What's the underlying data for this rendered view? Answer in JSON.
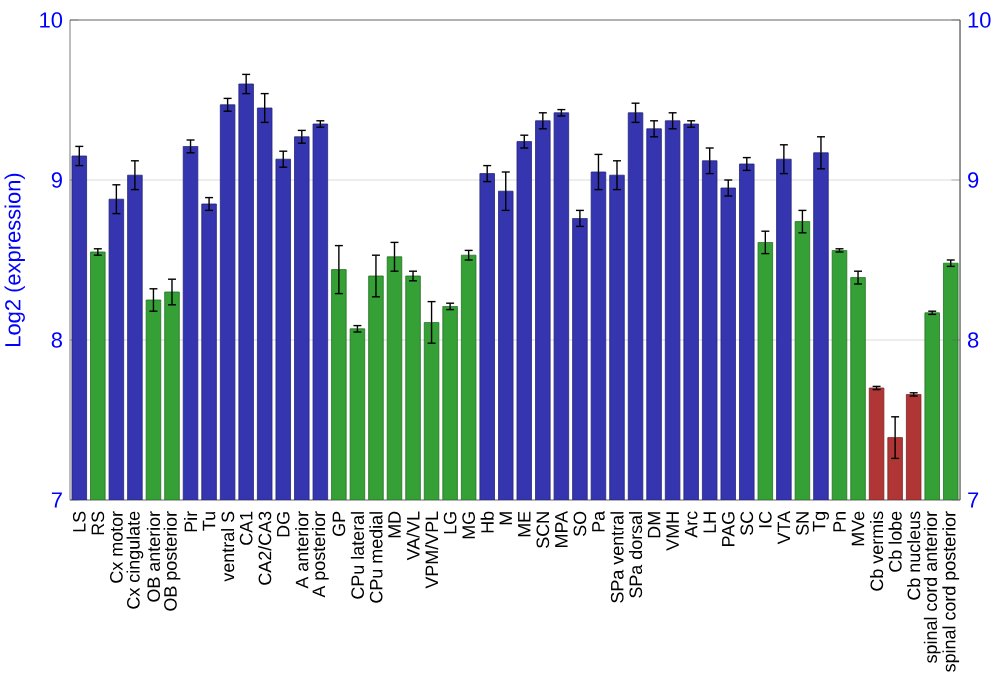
{
  "chart_data": {
    "type": "bar",
    "ylabel": "Log2 (expression)",
    "categories": [
      "LS",
      "RS",
      "Cx motor",
      "Cx cingulate",
      "OB anterior",
      "OB posterior",
      "Pir",
      "Tu",
      "ventral S",
      "CA1",
      "CA2/CA3",
      "DG",
      "A anterior",
      "A posterior",
      "GP",
      "CPu lateral",
      "CPu medial",
      "MD",
      "VA/VL",
      "VPM/VPL",
      "LG",
      "MG",
      "Hb",
      "M",
      "ME",
      "SCN",
      "MPA",
      "SO",
      "Pa",
      "SPa ventral",
      "SPa dorsal",
      "DM",
      "VMH",
      "Arc",
      "LH",
      "PAG",
      "SC",
      "IC",
      "VTA",
      "SN",
      "Tg",
      "Pn",
      "MVe",
      "Cb vermis",
      "Cb lobe",
      "Cb nucleus",
      "spinal cord anterior",
      "spinal cord posterior"
    ],
    "values": [
      9.15,
      8.55,
      8.88,
      9.03,
      8.25,
      8.3,
      9.21,
      8.85,
      9.47,
      9.6,
      9.45,
      9.13,
      9.27,
      9.35,
      8.44,
      8.07,
      8.4,
      8.52,
      8.4,
      8.11,
      8.21,
      8.53,
      9.04,
      8.93,
      9.24,
      9.37,
      9.42,
      8.76,
      9.05,
      9.03,
      9.42,
      9.32,
      9.37,
      9.35,
      9.12,
      8.95,
      9.1,
      8.61,
      9.13,
      8.74,
      9.17,
      8.56,
      8.39,
      7.7,
      7.39,
      7.66,
      8.17,
      8.48
    ],
    "errors": [
      0.06,
      0.02,
      0.09,
      0.09,
      0.07,
      0.08,
      0.04,
      0.04,
      0.04,
      0.06,
      0.09,
      0.05,
      0.04,
      0.02,
      0.15,
      0.02,
      0.13,
      0.09,
      0.03,
      0.13,
      0.02,
      0.03,
      0.05,
      0.12,
      0.04,
      0.05,
      0.02,
      0.05,
      0.11,
      0.09,
      0.06,
      0.05,
      0.05,
      0.02,
      0.08,
      0.05,
      0.04,
      0.07,
      0.09,
      0.07,
      0.1,
      0.01,
      0.04,
      0.01,
      0.13,
      0.01,
      0.01,
      0.02
    ],
    "colors": [
      "#3535b0",
      "#35a035",
      "#3535b0",
      "#3535b0",
      "#35a035",
      "#35a035",
      "#3535b0",
      "#3535b0",
      "#3535b0",
      "#3535b0",
      "#3535b0",
      "#3535b0",
      "#3535b0",
      "#3535b0",
      "#35a035",
      "#35a035",
      "#35a035",
      "#35a035",
      "#35a035",
      "#35a035",
      "#35a035",
      "#35a035",
      "#3535b0",
      "#3535b0",
      "#3535b0",
      "#3535b0",
      "#3535b0",
      "#3535b0",
      "#3535b0",
      "#3535b0",
      "#3535b0",
      "#3535b0",
      "#3535b0",
      "#3535b0",
      "#3535b0",
      "#3535b0",
      "#3535b0",
      "#35a035",
      "#3535b0",
      "#35a035",
      "#3535b0",
      "#35a035",
      "#35a035",
      "#b03535",
      "#b03535",
      "#b03535",
      "#35a035",
      "#35a035"
    ],
    "ylim": [
      7,
      10
    ],
    "yticks": [
      7,
      8,
      9,
      10
    ],
    "y2lim": [
      7,
      10
    ],
    "y2ticks": [
      7,
      8,
      9,
      10
    ],
    "grid": "y"
  }
}
